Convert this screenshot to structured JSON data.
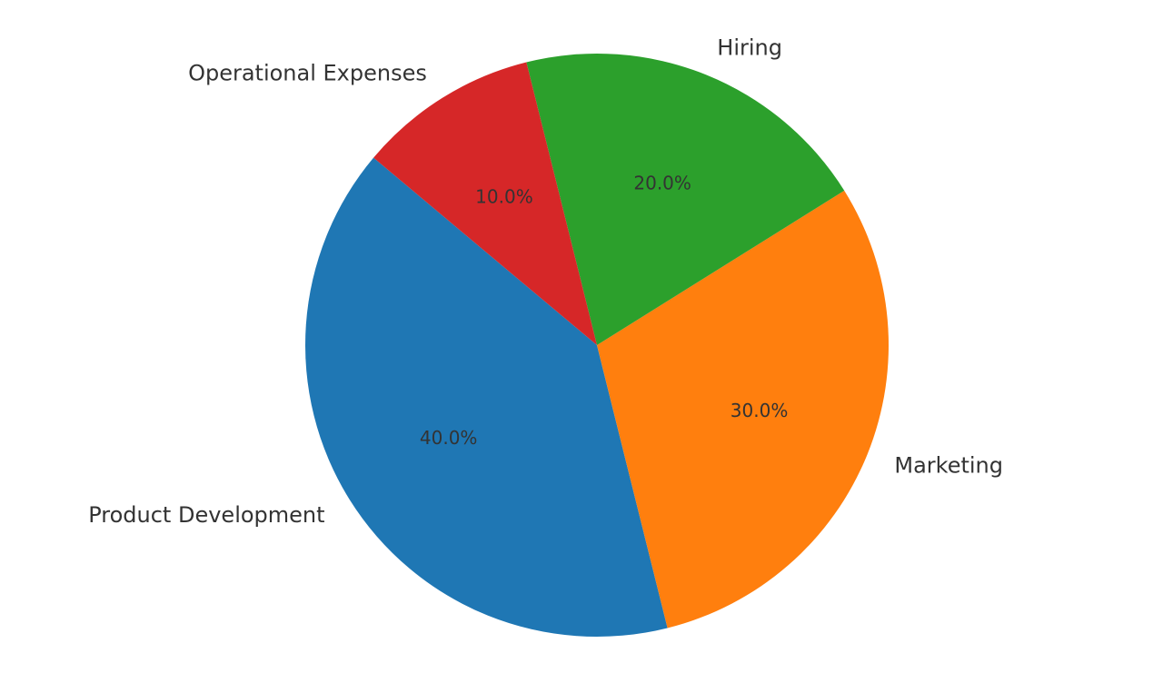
{
  "chart_data": {
    "type": "pie",
    "categories": [
      "Product Development",
      "Marketing",
      "Hiring",
      "Operational Expenses"
    ],
    "values": [
      40.0,
      30.0,
      20.0,
      10.0
    ],
    "value_labels": [
      "40.0%",
      "30.0%",
      "20.0%",
      "10.0%"
    ],
    "colors": [
      "#1f77b4",
      "#ff7f0e",
      "#2ca02c",
      "#d62728"
    ],
    "start_angle_deg": 140,
    "direction": "counterclockwise",
    "legend": "none"
  }
}
